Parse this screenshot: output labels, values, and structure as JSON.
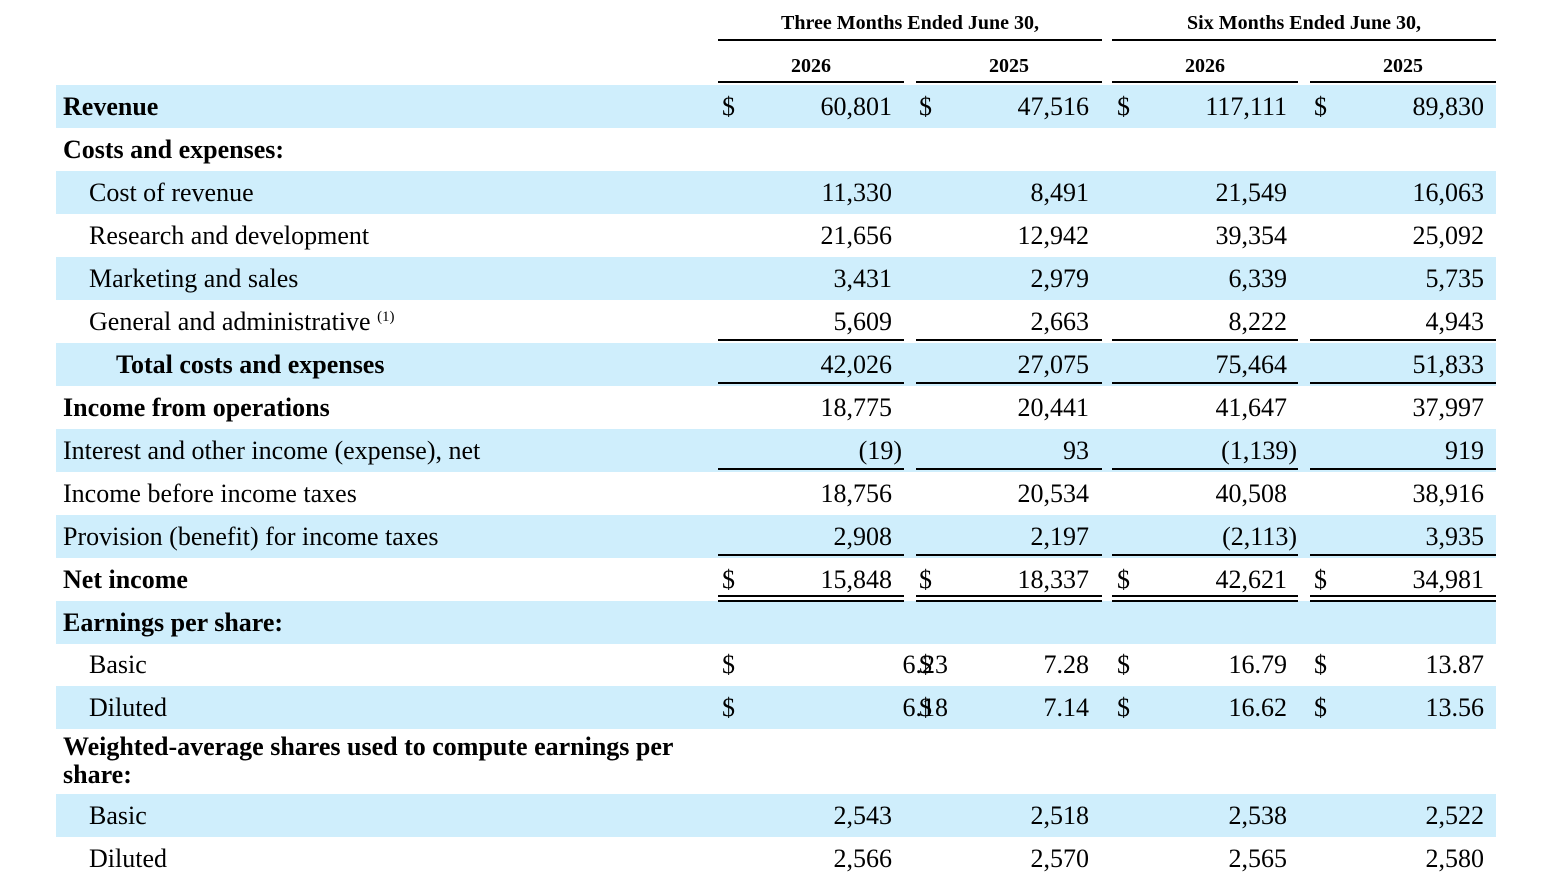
{
  "headers": {
    "group1": "Three Months Ended June 30,",
    "group2": "Six Months Ended June 30,",
    "years": [
      "2026",
      "2025",
      "2026",
      "2025"
    ]
  },
  "rows": [
    {
      "id": "revenue",
      "label": "Revenue",
      "values": [
        "60,801",
        "47,516",
        "117,111",
        "89,830"
      ],
      "dollar": true
    },
    {
      "id": "costs-header",
      "label": "Costs and expenses:"
    },
    {
      "id": "cost-of-revenue",
      "label": "Cost of revenue",
      "values": [
        "11,330",
        "8,491",
        "21,549",
        "16,063"
      ]
    },
    {
      "id": "research-development",
      "label": "Research and development",
      "values": [
        "21,656",
        "12,942",
        "39,354",
        "25,092"
      ]
    },
    {
      "id": "marketing-sales",
      "label": "Marketing and sales",
      "values": [
        "3,431",
        "2,979",
        "6,339",
        "5,735"
      ]
    },
    {
      "id": "general-admin",
      "label": "General and administrative",
      "footnote": "(1)",
      "values": [
        "5,609",
        "2,663",
        "8,222",
        "4,943"
      ]
    },
    {
      "id": "total-costs",
      "label": "Total costs and expenses",
      "values": [
        "42,026",
        "27,075",
        "75,464",
        "51,833"
      ]
    },
    {
      "id": "income-operations",
      "label": "Income from operations",
      "values": [
        "18,775",
        "20,441",
        "41,647",
        "37,997"
      ]
    },
    {
      "id": "interest-other",
      "label": "Interest and other income (expense), net",
      "values": [
        "(19)",
        "93",
        "(1,139)",
        "919"
      ]
    },
    {
      "id": "income-before-taxes",
      "label": "Income before income taxes",
      "values": [
        "18,756",
        "20,534",
        "40,508",
        "38,916"
      ]
    },
    {
      "id": "provision-taxes",
      "label": "Provision (benefit) for income taxes",
      "values": [
        "2,908",
        "2,197",
        "(2,113)",
        "3,935"
      ]
    },
    {
      "id": "net-income",
      "label": "Net income",
      "values": [
        "15,848",
        "18,337",
        "42,621",
        "34,981"
      ],
      "dollar": true
    },
    {
      "id": "eps-header",
      "label": "Earnings per share:"
    },
    {
      "id": "eps-basic",
      "label": "Basic",
      "values": [
        "6.23",
        "7.28",
        "16.79",
        "13.87"
      ],
      "dollar": true
    },
    {
      "id": "eps-diluted",
      "label": "Diluted",
      "values": [
        "6.18",
        "7.14",
        "16.62",
        "13.56"
      ],
      "dollar": true
    },
    {
      "id": "shares-header",
      "label": "Weighted-average shares used to compute earnings per share:"
    },
    {
      "id": "shares-basic",
      "label": "Basic",
      "values": [
        "2,543",
        "2,518",
        "2,538",
        "2,522"
      ]
    },
    {
      "id": "shares-diluted",
      "label": "Diluted",
      "values": [
        "2,566",
        "2,570",
        "2,565",
        "2,580"
      ]
    }
  ],
  "currency_symbol": "$",
  "colors": {
    "row_shade": "#cfeefc"
  }
}
